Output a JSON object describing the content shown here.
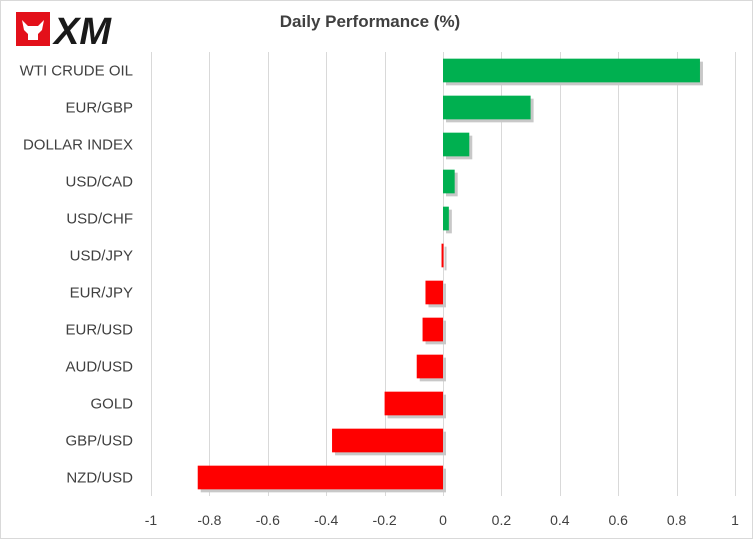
{
  "brand": {
    "name": "XM",
    "logo_red": "#e3101a",
    "logo_black": "#1a1a1a"
  },
  "chart_data": {
    "type": "bar",
    "orientation": "horizontal",
    "title": "Daily Performance  (%)",
    "categories": [
      "WTI CRUDE OIL",
      "EUR/GBP",
      "DOLLAR INDEX",
      "USD/CAD",
      "USD/CHF",
      "USD/JPY",
      "EUR/JPY",
      "EUR/USD",
      "AUD/USD",
      "GOLD",
      "GBP/USD",
      "NZD/USD"
    ],
    "values": [
      0.88,
      0.3,
      0.09,
      0.04,
      0.02,
      -0.005,
      -0.06,
      -0.07,
      -0.09,
      -0.2,
      -0.38,
      -0.84
    ],
    "xlim": [
      -1,
      1
    ],
    "xticks": [
      -1,
      -0.8,
      -0.6,
      -0.4,
      -0.2,
      0,
      0.2,
      0.4,
      0.6,
      0.8,
      1
    ],
    "xtick_labels": [
      "-1",
      "-0.8",
      "-0.6",
      "-0.4",
      "-0.2",
      "0",
      "0.2",
      "0.4",
      "0.6",
      "0.8",
      "1"
    ],
    "grid": true,
    "colors": {
      "positive": "#00b050",
      "negative": "#ff0000",
      "grid": "#d9d9d9",
      "text": "#404040"
    },
    "xlabel": "",
    "ylabel": ""
  }
}
